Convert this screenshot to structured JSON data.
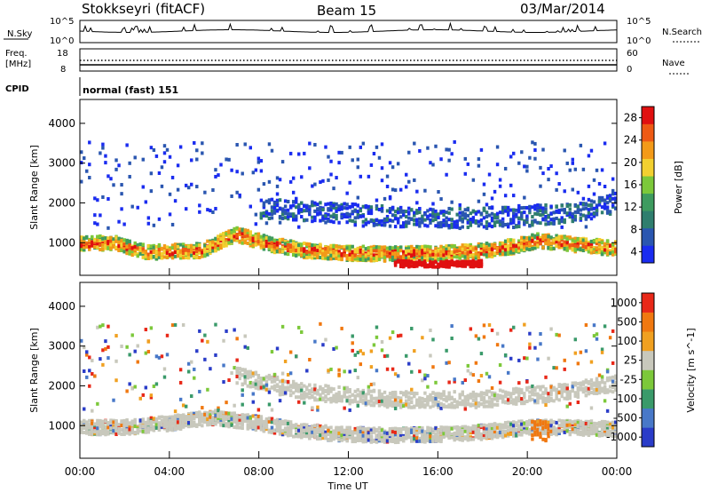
{
  "header": {
    "station": "Stokkseyri (fitACF)",
    "beam": "Beam 15",
    "date": "03/Mar/2014"
  },
  "status_panels": {
    "nsky_label": "N.Sky",
    "nsearch_label": "N.Search",
    "nsky_ticks": [
      "10^5",
      "10^0"
    ],
    "nsearch_ticks": [
      "10^5",
      "10^0"
    ],
    "freq_label": "Freq.",
    "freq_unit": "[MHz]",
    "freq_ticks": [
      "18",
      "8"
    ],
    "nave_label": "Nave",
    "nave_ticks": [
      "60",
      "0"
    ],
    "cpid_label": "CPID",
    "cpid_value": "normal (fast) 151"
  },
  "x_axis": {
    "label": "Time UT",
    "ticks": [
      "00:00",
      "04:00",
      "08:00",
      "12:00",
      "16:00",
      "20:00",
      "00:00"
    ]
  },
  "chart_data": [
    {
      "type": "heatmap",
      "panel": "power",
      "ylabel": "Slant Range [km]",
      "ylim": [
        180,
        4600
      ],
      "yticks": [
        1000,
        2000,
        3000,
        4000
      ],
      "xlim_hours": [
        0,
        24
      ],
      "colorbar": {
        "label": "Power [dB]",
        "ticks": [
          "28",
          "24",
          "20",
          "16",
          "12",
          "8",
          "4"
        ],
        "colors": [
          "#1a2cf0",
          "#2a56b0",
          "#2f7e6e",
          "#3e9b5f",
          "#7cc83a",
          "#f2d030",
          "#f39a18",
          "#ee5a14",
          "#e01010"
        ]
      },
      "features": [
        {
          "name": "main echo band",
          "x_hours": [
            0.0,
            1.5,
            3.0,
            5.5,
            7.0,
            8.5,
            10.0,
            12.0,
            14.0,
            16.0,
            18.0,
            19.5,
            20.5,
            22.0,
            24.0
          ],
          "range_km": [
            1000,
            1050,
            800,
            850,
            1250,
            1000,
            850,
            780,
            760,
            780,
            840,
            960,
            1100,
            1000,
            900
          ]
        },
        {
          "name": "near range patch",
          "x_hours": [
            14.0,
            16.0,
            18.0
          ],
          "range_km": [
            520,
            500,
            520
          ]
        },
        {
          "name": "upper diffuse band",
          "x_hours": [
            8.0,
            11.0,
            14.0,
            17.0,
            20.0,
            22.5,
            24.0
          ],
          "range_km": [
            1900,
            1800,
            1700,
            1650,
            1700,
            1850,
            2050
          ]
        }
      ]
    },
    {
      "type": "heatmap",
      "panel": "velocity",
      "ylabel": "Slant Range [km]",
      "ylim": [
        180,
        4600
      ],
      "yticks": [
        1000,
        2000,
        3000,
        4000
      ],
      "xlim_hours": [
        0,
        24
      ],
      "colorbar": {
        "label": "Velocity [m s^-1]",
        "ticks": [
          "1000",
          "500",
          "100",
          "25",
          "-25",
          "-100",
          "-500",
          "-1000"
        ],
        "colors": [
          "#2a3cc8",
          "#4878c8",
          "#3a9a6a",
          "#7cc83a",
          "#c8c8bc",
          "#f0a020",
          "#f07810",
          "#e82818"
        ]
      },
      "features": [
        {
          "name": "ground scatter band",
          "x_hours": [
            0.0,
            2.0,
            4.0,
            6.0,
            8.0,
            10.0,
            12.0,
            14.0,
            16.0,
            18.0,
            20.0,
            22.0,
            24.0
          ],
          "range_km": [
            1000,
            1000,
            1100,
            1250,
            1100,
            900,
            820,
            800,
            820,
            880,
            1000,
            1000,
            950
          ]
        },
        {
          "name": "upper gray band",
          "x_hours": [
            7.0,
            10.0,
            14.0,
            18.0,
            21.0,
            24.0
          ],
          "range_km": [
            2300,
            1900,
            1700,
            1700,
            1850,
            2100
          ]
        },
        {
          "name": "orange patch",
          "x_hours": [
            20.2,
            21.0
          ],
          "range_km": [
            950,
            900
          ]
        }
      ]
    }
  ],
  "colors": {
    "axes": "#000000",
    "background": "#ffffff"
  }
}
